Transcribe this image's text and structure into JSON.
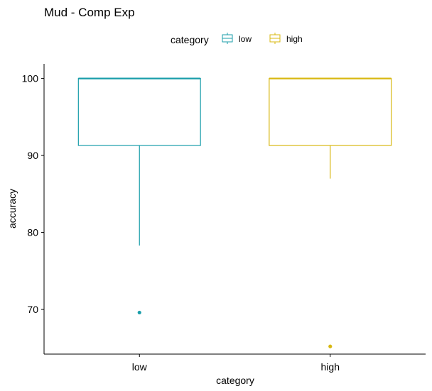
{
  "chart_data": {
    "type": "boxplot",
    "title": "Mud - Comp Exp",
    "xlabel": "category",
    "ylabel": "accuracy",
    "categories": [
      "low",
      "high"
    ],
    "ylim": [
      64.2,
      101.9
    ],
    "yticks": [
      70,
      80,
      90,
      100
    ],
    "grid": false,
    "legend": {
      "title": "category",
      "position": "top",
      "entries": [
        {
          "label": "low",
          "color": "#1a9eaa"
        },
        {
          "label": "high",
          "color": "#d8b812"
        }
      ]
    },
    "series": [
      {
        "category": "low",
        "color": "#1a9eaa",
        "whisker_low": 78.3,
        "q1": 91.3,
        "median": 100,
        "q3": 100,
        "whisker_high": 100,
        "outliers": [
          69.6
        ]
      },
      {
        "category": "high",
        "color": "#d8b812",
        "whisker_low": 87.0,
        "q1": 91.3,
        "median": 100,
        "q3": 100,
        "whisker_high": 100,
        "outliers": [
          65.2
        ]
      }
    ]
  }
}
